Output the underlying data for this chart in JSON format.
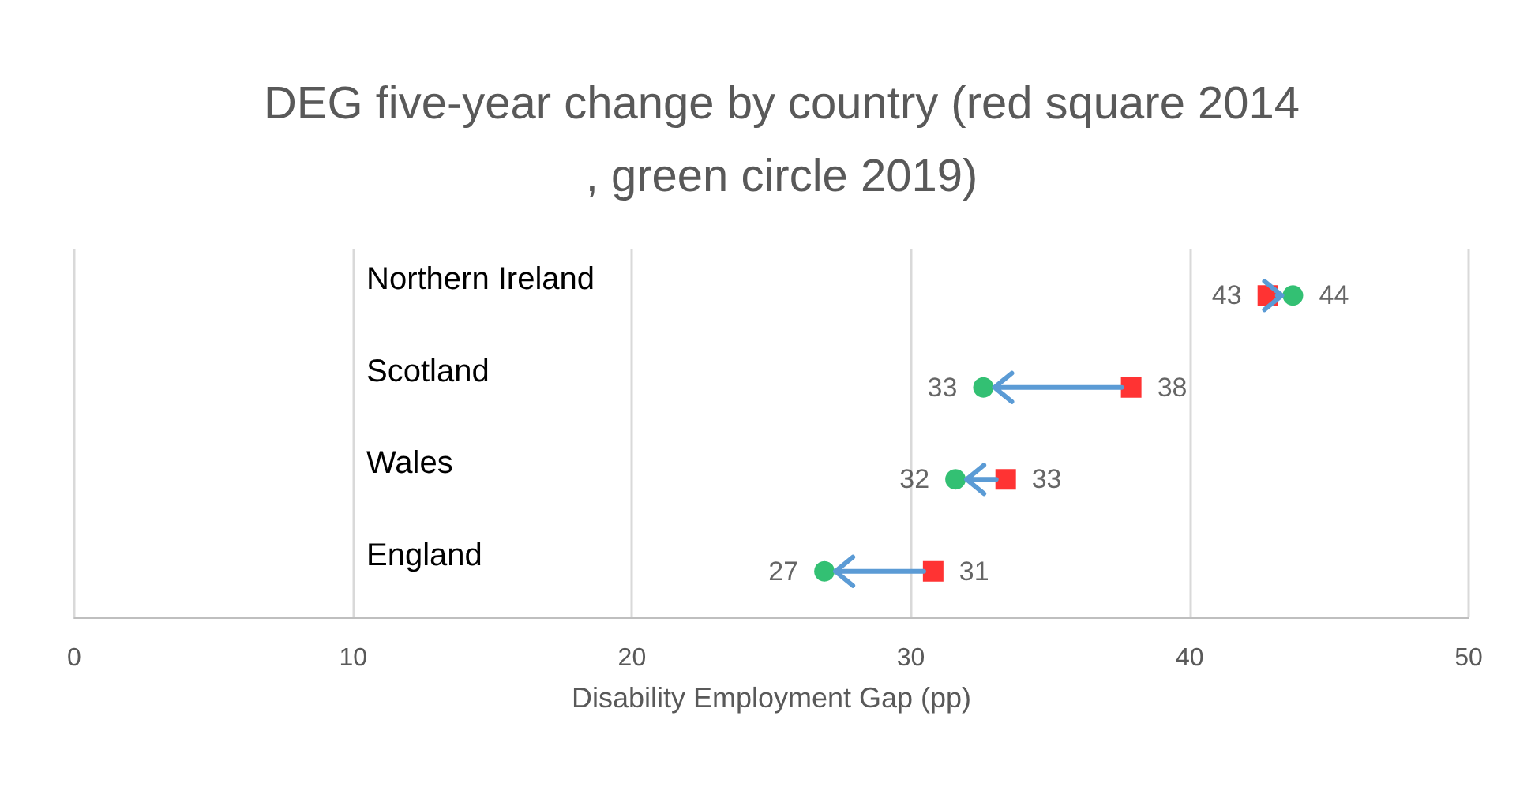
{
  "chart_data": {
    "type": "scatter",
    "orientation": "horizontal",
    "title": "DEG five-year change by country (red square 2014, green circle 2019)",
    "xlabel": "Disability Employment Gap (pp)",
    "categories": [
      "Northern Ireland",
      "Scotland",
      "Wales",
      "England"
    ],
    "series": [
      {
        "color": "#ff0000",
        "marker": "square",
        "values": [
          42.8,
          37.9,
          33.4,
          30.8
        ],
        "value_labels": [
          "43",
          "38",
          "33",
          "31"
        ]
      },
      {
        "color": "#00b050",
        "marker": "circle",
        "values": [
          43.7,
          32.6,
          31.6,
          26.9
        ],
        "value_labels": [
          "44",
          "33",
          "32",
          "27"
        ]
      }
    ],
    "xlim": [
      0,
      50
    ],
    "xticks": [
      0,
      10,
      20,
      30,
      40,
      50
    ],
    "grid": "x"
  }
}
